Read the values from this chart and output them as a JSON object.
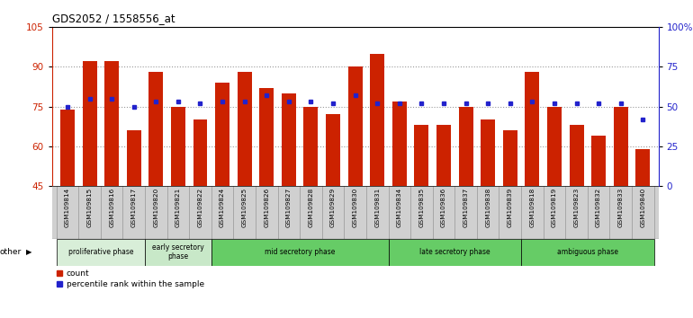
{
  "title": "GDS2052 / 1558556_at",
  "samples": [
    "GSM109814",
    "GSM109815",
    "GSM109816",
    "GSM109817",
    "GSM109820",
    "GSM109821",
    "GSM109822",
    "GSM109824",
    "GSM109825",
    "GSM109826",
    "GSM109827",
    "GSM109828",
    "GSM109829",
    "GSM109830",
    "GSM109831",
    "GSM109834",
    "GSM109835",
    "GSM109836",
    "GSM109837",
    "GSM109838",
    "GSM109839",
    "GSM109818",
    "GSM109819",
    "GSM109823",
    "GSM109832",
    "GSM109833",
    "GSM109840"
  ],
  "count_values": [
    74,
    92,
    92,
    66,
    88,
    75,
    70,
    84,
    88,
    82,
    80,
    75,
    72,
    90,
    95,
    77,
    68,
    68,
    75,
    70,
    66,
    88,
    75,
    68,
    64,
    75,
    59
  ],
  "percentile_values": [
    50,
    55,
    55,
    50,
    53,
    53,
    52,
    53,
    53,
    57,
    53,
    53,
    52,
    57,
    52,
    52,
    52,
    52,
    52,
    52,
    52,
    53,
    52,
    52,
    52,
    52,
    42
  ],
  "bar_color": "#cc2200",
  "dot_color": "#2222cc",
  "ymin": 45,
  "ymax": 105,
  "yticks": [
    45,
    60,
    75,
    90,
    105
  ],
  "right_yticks": [
    0,
    25,
    50,
    75,
    100
  ],
  "right_ytick_labels": [
    "0",
    "25",
    "50",
    "75",
    "100%"
  ],
  "phases": [
    {
      "label": "proliferative phase",
      "start": 0,
      "end": 4,
      "color": "#d8eed8"
    },
    {
      "label": "early secretory\nphase",
      "start": 4,
      "end": 7,
      "color": "#c8e8c8"
    },
    {
      "label": "mid secretory phase",
      "start": 7,
      "end": 15,
      "color": "#66cc66"
    },
    {
      "label": "late secretory phase",
      "start": 15,
      "end": 21,
      "color": "#66cc66"
    },
    {
      "label": "ambiguous phase",
      "start": 21,
      "end": 27,
      "color": "#66cc66"
    }
  ],
  "xlabel_bg": "#d0d0d0",
  "grid_color": "#999999"
}
